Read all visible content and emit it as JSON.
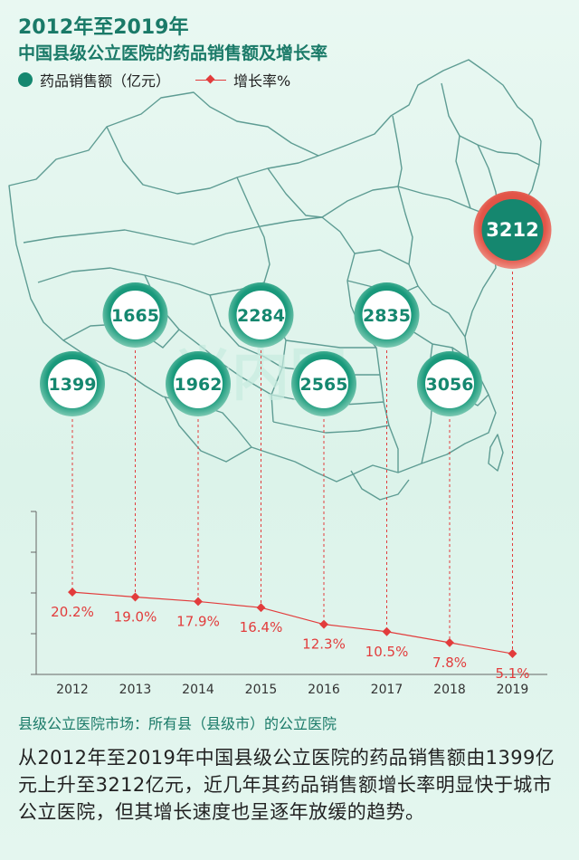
{
  "header": {
    "title_line1": "2012年至2019年",
    "title_line2": "中国县级公立医院的药品销售额及增长率"
  },
  "legend": {
    "sales_label": "药品销售额（亿元）",
    "growth_label": "增长率%"
  },
  "watermark": "米内网",
  "footnote": "县级公立医院市场：所有县（县级市）的公立医院",
  "description": "从2012年至2019年中国县级公立医院的药品销售额由1399亿元上升至3212亿元，近几年其药品销售额增长率明显快于城市公立医院，但其增长速度也呈逐年放缓的趋势。",
  "colors": {
    "teal": "#15876f",
    "red": "#e23c3c",
    "map_line": "#5e9c93"
  },
  "chart_data": {
    "type": "line",
    "title": "2012年至2019年中国县级公立医院的药品销售额及增长率",
    "categories": [
      "2012",
      "2013",
      "2014",
      "2015",
      "2016",
      "2017",
      "2018",
      "2019"
    ],
    "series": [
      {
        "name": "药品销售额（亿元）",
        "values": [
          1399,
          1665,
          1962,
          2284,
          2565,
          2835,
          3056,
          3212
        ],
        "labels": [
          "1399",
          "1665",
          "1962",
          "2284",
          "2565",
          "2835",
          "3056",
          "3212"
        ]
      },
      {
        "name": "增长率%",
        "values": [
          20.2,
          19.0,
          17.9,
          16.4,
          12.3,
          10.5,
          7.8,
          5.1
        ],
        "labels": [
          "20.2%",
          "19.0%",
          "17.9%",
          "16.4%",
          "12.3%",
          "10.5%",
          "7.8%",
          "5.1%"
        ]
      }
    ],
    "xlabel": "",
    "ylabel": "",
    "ylim": [
      0,
      40
    ],
    "grid": false
  }
}
